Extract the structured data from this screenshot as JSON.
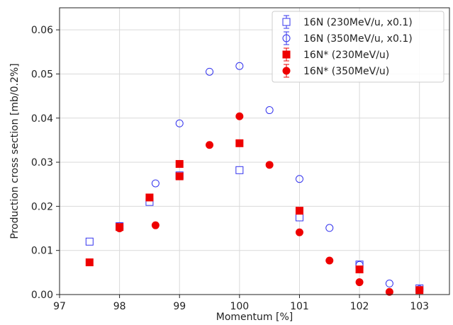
{
  "chart_data": {
    "type": "scatter",
    "title": "",
    "xlabel": "Momentum [%]",
    "ylabel": "Production cross section [mb/0.2%]",
    "xlim": [
      97,
      103.5
    ],
    "ylim": [
      0,
      0.065
    ],
    "xticks": [
      "97",
      "98",
      "99",
      "100",
      "101",
      "102",
      "103"
    ],
    "yticks": [
      "0.00",
      "0.01",
      "0.02",
      "0.03",
      "0.04",
      "0.05",
      "0.06"
    ],
    "grid": true,
    "legend_position": "top-right",
    "series": [
      {
        "name": "16N (230MeV/u, x0.1)",
        "marker": "open-square",
        "color": "#3333ee",
        "points": [
          [
            97.5,
            0.012
          ],
          [
            98.0,
            0.0155
          ],
          [
            98.5,
            0.021
          ],
          [
            99.0,
            0.027
          ],
          [
            100.0,
            0.0282
          ],
          [
            101.0,
            0.0175
          ],
          [
            102.0,
            0.0068
          ],
          [
            103.0,
            0.0014
          ]
        ]
      },
      {
        "name": "16N (350MeV/u, x0.1)",
        "marker": "open-circle",
        "color": "#3333ee",
        "points": [
          [
            98.0,
            0.0155
          ],
          [
            98.6,
            0.0252
          ],
          [
            99.0,
            0.0388
          ],
          [
            99.5,
            0.0505
          ],
          [
            100.0,
            0.0518
          ],
          [
            100.5,
            0.0418
          ],
          [
            101.0,
            0.0262
          ],
          [
            101.5,
            0.0151
          ],
          [
            102.0,
            0.0067
          ],
          [
            102.5,
            0.0025
          ],
          [
            103.0,
            0.0012
          ]
        ]
      },
      {
        "name": "16N* (230MeV/u)",
        "marker": "filled-square",
        "color": "#ee0000",
        "points": [
          [
            97.5,
            0.0073
          ],
          [
            98.0,
            0.0153
          ],
          [
            98.5,
            0.022
          ],
          [
            99.0,
            0.0296
          ],
          [
            99.0,
            0.0268
          ],
          [
            100.0,
            0.0343
          ],
          [
            101.0,
            0.019
          ],
          [
            102.0,
            0.0057
          ],
          [
            103.0,
            0.001
          ]
        ]
      },
      {
        "name": "16N* (350MeV/u)",
        "marker": "filled-circle",
        "color": "#ee0000",
        "points": [
          [
            98.0,
            0.015
          ],
          [
            98.6,
            0.0157
          ],
          [
            99.5,
            0.0339
          ],
          [
            100.0,
            0.0404
          ],
          [
            100.5,
            0.0294
          ],
          [
            101.0,
            0.0141
          ],
          [
            101.5,
            0.0077
          ],
          [
            102.0,
            0.0028
          ],
          [
            102.5,
            0.0006
          ]
        ]
      }
    ]
  }
}
